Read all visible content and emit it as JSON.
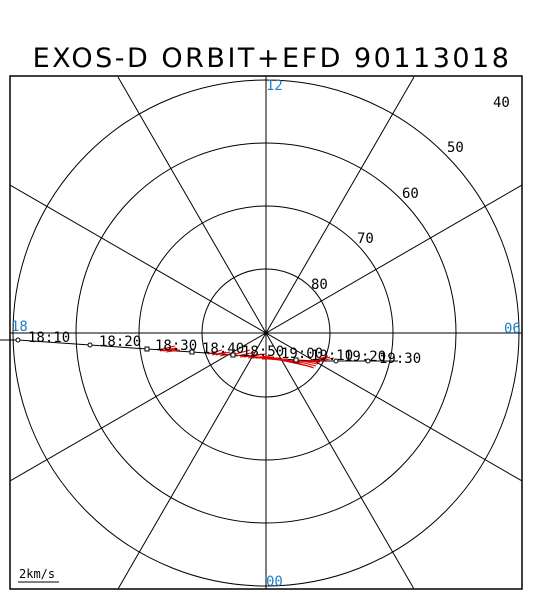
{
  "title": "EXOS-D ORBIT+EFD 90113018",
  "mlt_labels": {
    "top": "12",
    "bottom": "00",
    "left": "18",
    "right": "06"
  },
  "lat_labels": [
    "40",
    "50",
    "60",
    "70",
    "80"
  ],
  "time_labels": [
    "18:10",
    "18:20",
    "18:30",
    "18:40",
    "18:50",
    "19:00",
    "19:10",
    "19:20",
    "19:30"
  ],
  "scale_label": "2km/s",
  "colors": {
    "grid": "#000000",
    "mlt_label": "#1e7fc4",
    "vector": "#e00000",
    "orbit": "#000000"
  }
}
